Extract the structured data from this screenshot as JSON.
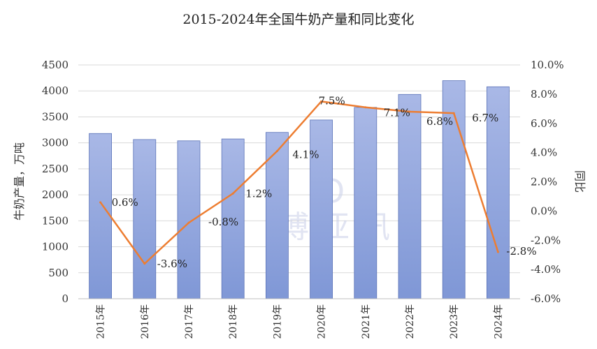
{
  "chart_data": {
    "type": "bar+line",
    "title": "2015-2024年全国牛奶产量和同比变化",
    "categories": [
      "2015年",
      "2016年",
      "2017年",
      "2018年",
      "2019年",
      "2020年",
      "2021年",
      "2022年",
      "2023年",
      "2024年"
    ],
    "series": [
      {
        "values": [
          3180,
          3064,
          3039,
          3075,
          3201,
          3440,
          3683,
          3932,
          4197,
          4079
        ],
        "color": "#8ea3dc",
        "axis": "left"
      },
      {
        "values": [
          0.6,
          -3.6,
          -0.8,
          1.2,
          4.1,
          7.5,
          7.1,
          6.8,
          6.7,
          -2.8
        ],
        "color": "#ed7d31",
        "axis": "right"
      }
    ],
    "data_labels": [
      "0.6%",
      "-3.6%",
      "-0.8%",
      "1.2%",
      "4.1%",
      "7.5%",
      "7.1%",
      "6.8%",
      "6.7%",
      "-2.8%"
    ],
    "ylabel": "牛奶产量，万吨",
    "y2label": "同比",
    "ylim": [
      0,
      4500
    ],
    "y2lim": [
      -6.0,
      10.0
    ],
    "yticks": [
      "0",
      "500",
      "1000",
      "1500",
      "2000",
      "2500",
      "3000",
      "3500",
      "4000",
      "4500"
    ],
    "y2ticks": [
      "-6.0%",
      "-4.0%",
      "-2.0%",
      "0.0%",
      "2.0%",
      "4.0%",
      "6.0%",
      "8.0%",
      "10.0%"
    ],
    "grid": true,
    "legend": "none"
  },
  "watermark": {
    "letters": "O A",
    "text": "博 亚 讯"
  }
}
